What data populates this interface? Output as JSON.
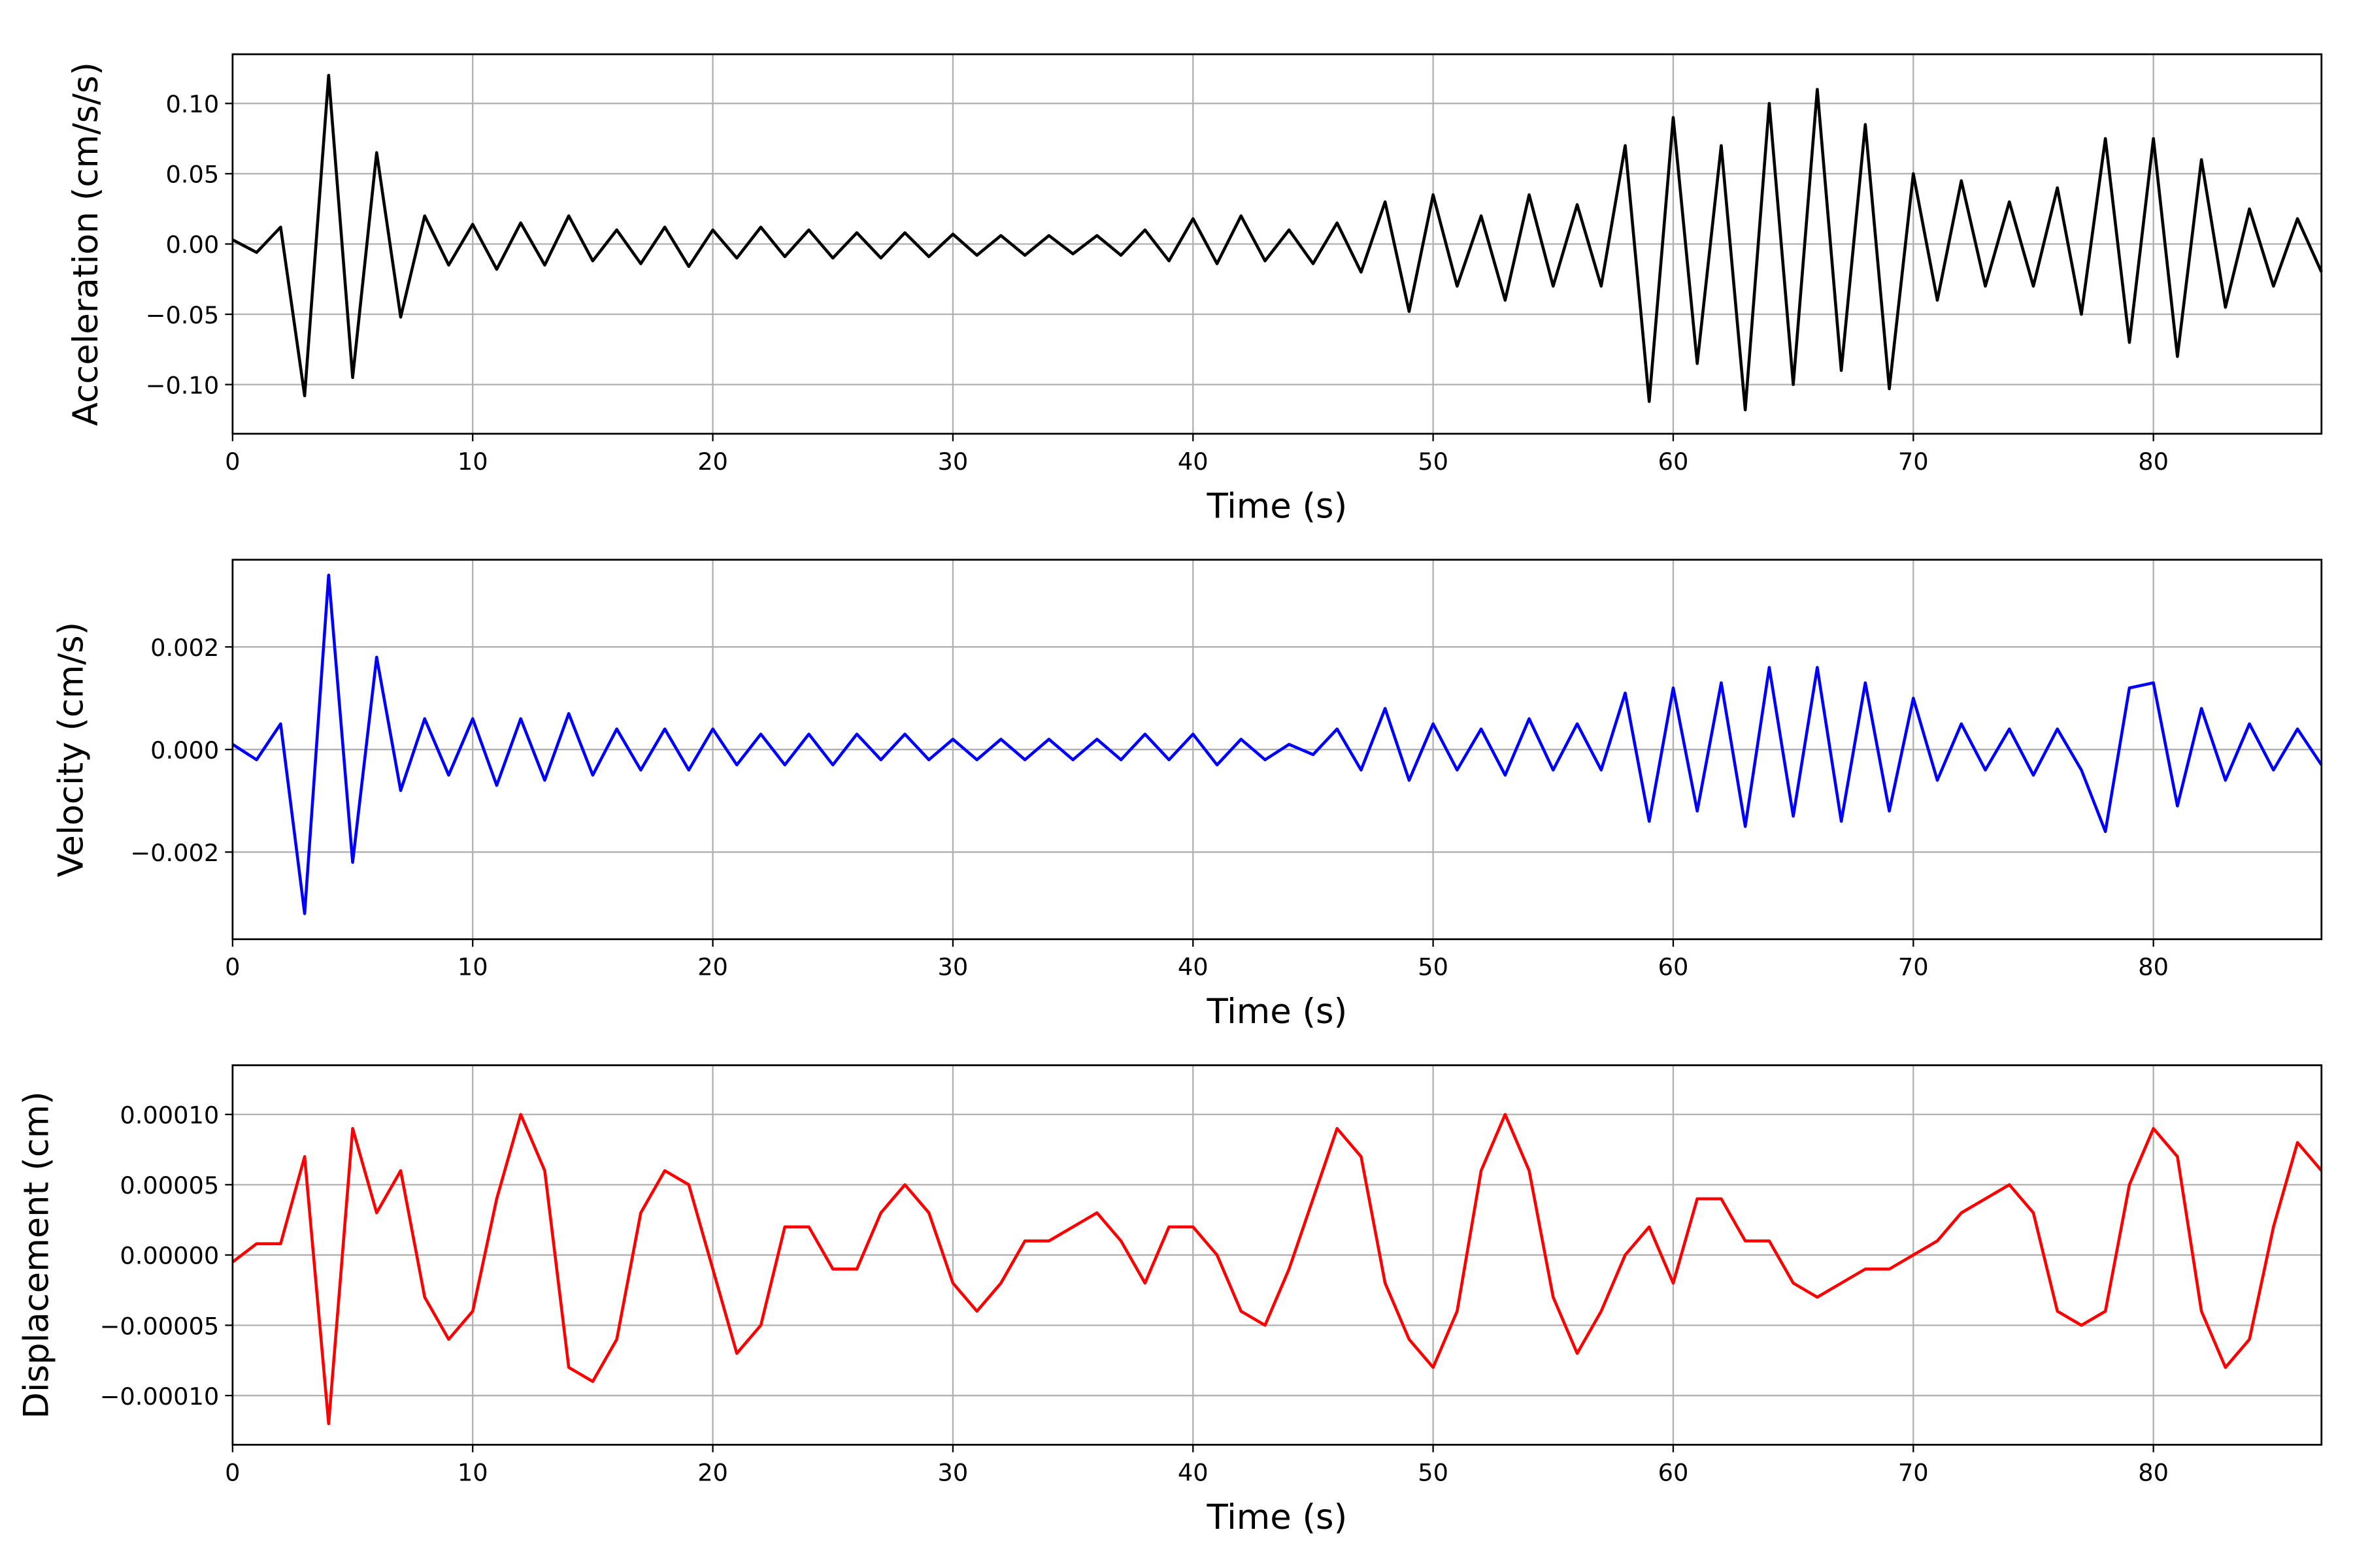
{
  "chart_data": [
    {
      "type": "line",
      "ylabel": "Acceleration (cm/s/s)",
      "xlabel": "Time (s)",
      "color": "#000000",
      "grid": true,
      "xlim": [
        0,
        87
      ],
      "xticks": [
        0,
        10,
        20,
        30,
        40,
        50,
        60,
        70,
        80
      ],
      "ylim": [
        -0.135,
        0.135
      ],
      "yticks": [
        {
          "value": -0.1,
          "label": "−0.10"
        },
        {
          "value": -0.05,
          "label": "−0.05"
        },
        {
          "value": 0,
          "label": "0.00"
        },
        0.05,
        {
          "value": 0.1,
          "label": "0.10"
        }
      ],
      "x": [
        0,
        1,
        2,
        3,
        4,
        5,
        6,
        7,
        8,
        9,
        10,
        11,
        12,
        13,
        14,
        15,
        16,
        17,
        18,
        19,
        20,
        21,
        22,
        23,
        24,
        25,
        26,
        27,
        28,
        29,
        30,
        31,
        32,
        33,
        34,
        35,
        36,
        37,
        38,
        39,
        40,
        41,
        42,
        43,
        44,
        45,
        46,
        47,
        48,
        49,
        50,
        51,
        52,
        53,
        54,
        55,
        56,
        57,
        58,
        59,
        60,
        61,
        62,
        63,
        64,
        65,
        66,
        67,
        68,
        69,
        70,
        71,
        72,
        73,
        74,
        75,
        76,
        77,
        78,
        79,
        80,
        81,
        82,
        83,
        84,
        85,
        86,
        87
      ],
      "values": [
        0.003,
        -0.006,
        0.012,
        -0.108,
        0.12,
        -0.095,
        0.065,
        -0.052,
        0.02,
        -0.015,
        0.014,
        -0.018,
        0.015,
        -0.015,
        0.02,
        -0.012,
        0.01,
        -0.014,
        0.012,
        -0.016,
        0.01,
        -0.01,
        0.012,
        -0.009,
        0.01,
        -0.01,
        0.008,
        -0.01,
        0.008,
        -0.009,
        0.007,
        -0.008,
        0.006,
        -0.008,
        0.006,
        -0.007,
        0.006,
        -0.008,
        0.01,
        -0.012,
        0.018,
        -0.014,
        0.02,
        -0.012,
        0.01,
        -0.014,
        0.015,
        -0.02,
        0.03,
        -0.048,
        0.035,
        -0.03,
        0.02,
        -0.04,
        0.035,
        -0.03,
        0.028,
        -0.03,
        0.07,
        -0.112,
        0.09,
        -0.085,
        0.07,
        -0.118,
        0.1,
        -0.1,
        0.11,
        -0.09,
        0.085,
        -0.103,
        0.05,
        -0.04,
        0.045,
        -0.03,
        0.03,
        -0.03,
        0.04,
        -0.05,
        0.075,
        -0.07,
        0.075,
        -0.08,
        0.06,
        -0.045,
        0.025,
        -0.03,
        0.018,
        -0.02
      ]
    },
    {
      "type": "line",
      "ylabel": "Velocity (cm/s)",
      "xlabel": "Time (s)",
      "color": "#0000ff",
      "grid": true,
      "xlim": [
        0,
        87
      ],
      "xticks": [
        0,
        10,
        20,
        30,
        40,
        50,
        60,
        70,
        80
      ],
      "ylim": [
        -0.0037,
        0.0037
      ],
      "yticks": [
        {
          "value": -0.002,
          "label": "−0.002"
        },
        {
          "value": 0,
          "label": "0.000"
        },
        0.002
      ],
      "x": [
        0,
        1,
        2,
        3,
        4,
        5,
        6,
        7,
        8,
        9,
        10,
        11,
        12,
        13,
        14,
        15,
        16,
        17,
        18,
        19,
        20,
        21,
        22,
        23,
        24,
        25,
        26,
        27,
        28,
        29,
        30,
        31,
        32,
        33,
        34,
        35,
        36,
        37,
        38,
        39,
        40,
        41,
        42,
        43,
        44,
        45,
        46,
        47,
        48,
        49,
        50,
        51,
        52,
        53,
        54,
        55,
        56,
        57,
        58,
        59,
        60,
        61,
        62,
        63,
        64,
        65,
        66,
        67,
        68,
        69,
        70,
        71,
        72,
        73,
        74,
        75,
        76,
        77,
        78,
        79,
        80,
        81,
        82,
        83,
        84,
        85,
        86,
        87
      ],
      "values": [
        0.0001,
        -0.0002,
        0.0005,
        -0.0032,
        0.0034,
        -0.0022,
        0.0018,
        -0.0008,
        0.0006,
        -0.0005,
        0.0006,
        -0.0007,
        0.0006,
        -0.0006,
        0.0007,
        -0.0005,
        0.0004,
        -0.0004,
        0.0004,
        -0.0004,
        0.0004,
        -0.0003,
        0.0003,
        -0.0003,
        0.0003,
        -0.0003,
        0.0003,
        -0.0002,
        0.0003,
        -0.0002,
        0.0002,
        -0.0002,
        0.0002,
        -0.0002,
        0.0002,
        -0.0002,
        0.0002,
        -0.0002,
        0.0003,
        -0.0002,
        0.0003,
        -0.0003,
        0.0002,
        -0.0002,
        0.0001,
        -0.0001,
        0.0004,
        -0.0004,
        0.0008,
        -0.0006,
        0.0005,
        -0.0004,
        0.0004,
        -0.0005,
        0.0006,
        -0.0004,
        0.0005,
        -0.0004,
        0.0011,
        -0.0014,
        0.0012,
        -0.0012,
        0.0013,
        -0.0015,
        0.0016,
        -0.0013,
        0.0016,
        -0.0014,
        0.0013,
        -0.0012,
        0.001,
        -0.0006,
        0.0005,
        -0.0004,
        0.0004,
        -0.0005,
        0.0004,
        -0.0004,
        -0.0016,
        0.0012,
        0.0013,
        -0.0011,
        0.0008,
        -0.0006,
        0.0005,
        -0.0004,
        0.0004,
        -0.0003
      ]
    },
    {
      "type": "line",
      "ylabel": "Displacement (cm)",
      "xlabel": "Time (s)",
      "color": "#ff0000",
      "grid": true,
      "xlim": [
        0,
        87
      ],
      "xticks": [
        0,
        10,
        20,
        30,
        40,
        50,
        60,
        70,
        80
      ],
      "ylim": [
        -0.000135,
        0.000135
      ],
      "yticks": [
        {
          "value": -0.0001,
          "label": "−0.00010"
        },
        {
          "value": -5e-05,
          "label": "−0.00005"
        },
        {
          "value": 0,
          "label": "0.00000"
        },
        {
          "value": 5e-05,
          "label": "0.00005"
        },
        {
          "value": 0.0001,
          "label": "0.00010"
        }
      ],
      "x": [
        0,
        1,
        2,
        3,
        4,
        5,
        6,
        7,
        8,
        9,
        10,
        11,
        12,
        13,
        14,
        15,
        16,
        17,
        18,
        19,
        20,
        21,
        22,
        23,
        24,
        25,
        26,
        27,
        28,
        29,
        30,
        31,
        32,
        33,
        34,
        35,
        36,
        37,
        38,
        39,
        40,
        41,
        42,
        43,
        44,
        45,
        46,
        47,
        48,
        49,
        50,
        51,
        52,
        53,
        54,
        55,
        56,
        57,
        58,
        59,
        60,
        61,
        62,
        63,
        64,
        65,
        66,
        67,
        68,
        69,
        70,
        71,
        72,
        73,
        74,
        75,
        76,
        77,
        78,
        79,
        80,
        81,
        82,
        83,
        84,
        85,
        86,
        87
      ],
      "values": [
        -5e-06,
        8e-06,
        8e-06,
        7e-05,
        -0.00012,
        9e-05,
        3e-05,
        6e-05,
        -3e-05,
        -6e-05,
        -4e-05,
        4e-05,
        0.0001,
        6e-05,
        -8e-05,
        -9e-05,
        -6e-05,
        3e-05,
        6e-05,
        5e-05,
        -1e-05,
        -7e-05,
        -5e-05,
        2e-05,
        2e-05,
        -1e-05,
        -1e-05,
        3e-05,
        5e-05,
        3e-05,
        -2e-05,
        -4e-05,
        -2e-05,
        1e-05,
        1e-05,
        2e-05,
        3e-05,
        1e-05,
        -2e-05,
        2e-05,
        2e-05,
        0,
        -4e-05,
        -5e-05,
        -1e-05,
        4e-05,
        9e-05,
        7e-05,
        -2e-05,
        -6e-05,
        -8e-05,
        -4e-05,
        6e-05,
        0.0001,
        6e-05,
        -3e-05,
        -7e-05,
        -4e-05,
        0,
        2e-05,
        -2e-05,
        4e-05,
        4e-05,
        1e-05,
        1e-05,
        -2e-05,
        -3e-05,
        -2e-05,
        -1e-05,
        -1e-05,
        0,
        1e-05,
        3e-05,
        4e-05,
        5e-05,
        3e-05,
        -4e-05,
        -5e-05,
        -4e-05,
        5e-05,
        9e-05,
        7e-05,
        -4e-05,
        -8e-05,
        -6e-05,
        2e-05,
        8e-05,
        6e-05
      ]
    }
  ]
}
